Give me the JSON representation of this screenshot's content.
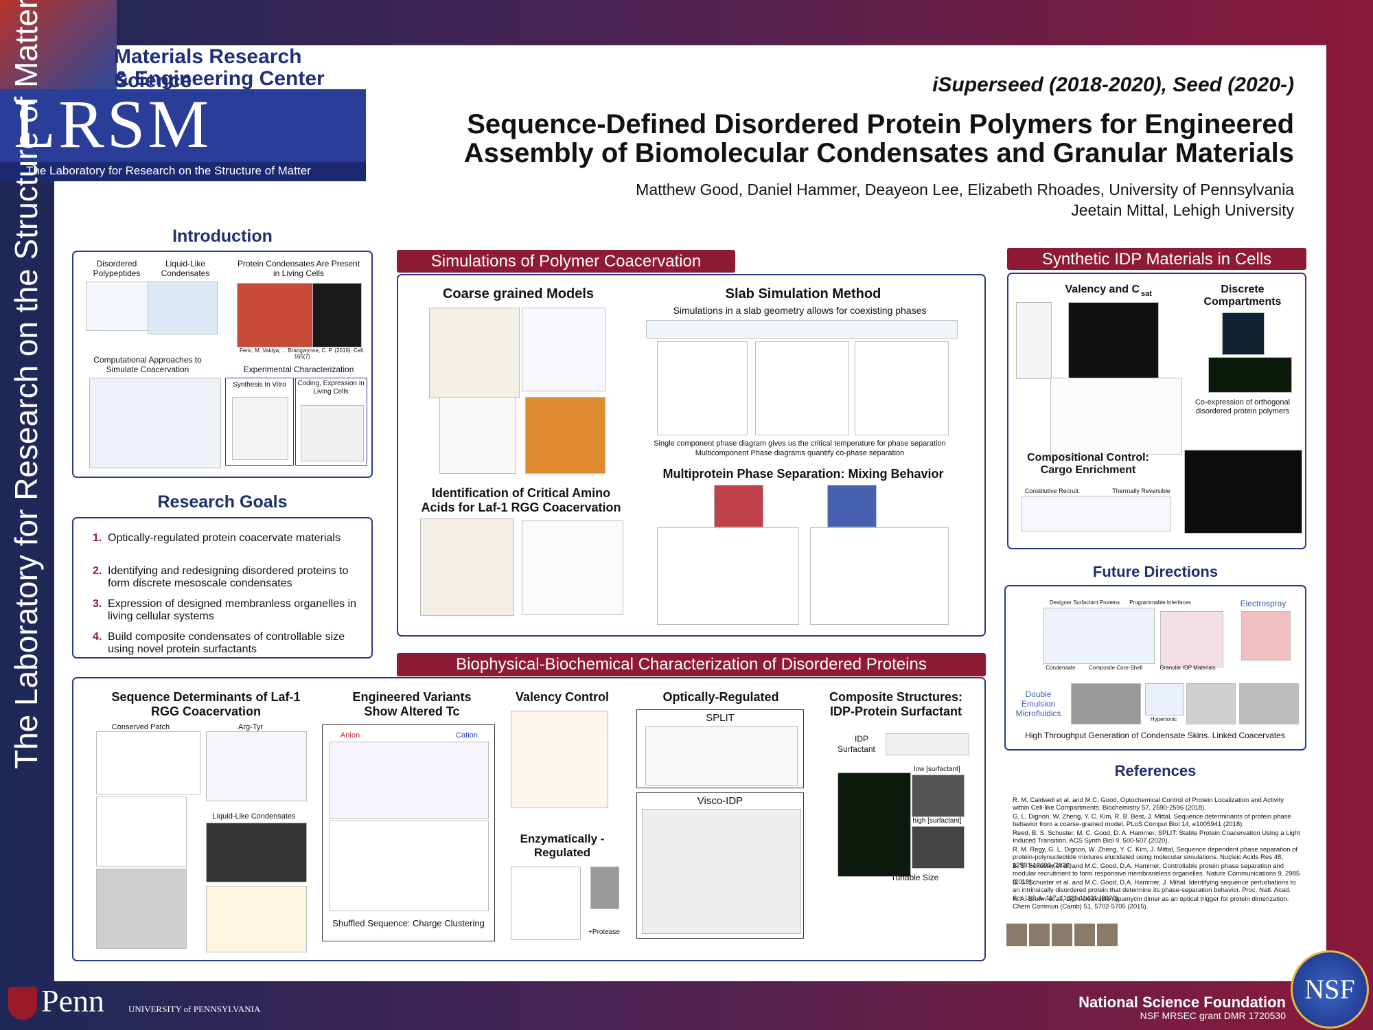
{
  "logo": {
    "center_line1": "Materials Research Science",
    "center_line2": "& Engineering Center",
    "acronym": "LRSM",
    "tagline": "The Laboratory for Research on the Structure of Matter"
  },
  "side_text": "The Laboratory for Research on the Structure of Matter",
  "header": {
    "program": "iSuperseed (2018-2020), Seed (2020-)",
    "title_line1": "Sequence-Defined Disordered Protein Polymers for Engineered",
    "title_line2": "Assembly of Biomolecular Condensates and Granular Materials",
    "authors_line1": "Matthew Good, Daniel Hammer, Deayeon Lee, Elizabeth Rhoades, University of Pennsylvania",
    "authors_line2": "Jeetain Mittal, Lehigh University"
  },
  "introduction": {
    "title": "Introduction",
    "disordered": "Disordered Polypeptides",
    "liquid": "Liquid-Like Condensates",
    "present": "Protein Condensates Are Present in Living Cells",
    "citation": "Feric, M.,Vaidya, ... Brangwynne, C. P. (2016). Cell. 165(7)",
    "computational": "Computational Approaches to Simulate Coacervation",
    "experimental": "Experimental Characterization",
    "synthesis": "Synthesis In Vitro",
    "coding": "Coding, Expression in Living Cells"
  },
  "research_goals": {
    "title": "Research Goals",
    "items": [
      {
        "number": "1.",
        "text": "Optically-regulated protein coacervate materials"
      },
      {
        "number": "2.",
        "text": "Identifying and redesigning disordered proteins to form discrete mesoscale condensates"
      },
      {
        "number": "3.",
        "text": "Expression of designed membranless organelles in living cellular systems"
      },
      {
        "number": "4.",
        "text": "Build composite condensates of controllable size using novel protein surfactants"
      }
    ]
  },
  "simulations": {
    "banner": "Simulations of Polymer Coacervation",
    "coarse": "Coarse grained Models",
    "slab": "Slab Simulation Method",
    "slab_caption": "Simulations in a slab geometry  allows for coexisting phases",
    "slab_note1": "Single component phase diagram gives us the critical temperature for phase separation",
    "slab_note2": "Multicomponent Phase diagrams quantify co-phase separation",
    "amino": "Identification of Critical Amino Acids for Laf-1 RGG Coacervation",
    "multi": "Multiprotein Phase Separation: Mixing Behavior"
  },
  "synthetic": {
    "banner": "Synthetic IDP Materials in Cells",
    "valency": "Valency and C",
    "valency_sub": "sat",
    "discrete": "Discrete Compartments",
    "coexpression": "Co-expression of orthogonal disordered protein polymers",
    "compositional": "Compositional Control: Cargo Enrichment",
    "constitutive": "Constitutive Recruit.",
    "thermal": "Thermally Reversible"
  },
  "future": {
    "title": "Future Directions",
    "designer": "Designer Surfactant Proteins",
    "programmable": "Programmable Interfaces",
    "electrospray": "Electrospray",
    "condensate": "Condensate",
    "core_shell": "Composite Core-Shell",
    "granular": "Granular IDP Materials",
    "double": "Double Emulsion Microfluidics",
    "hypertonic": "Hypertonic",
    "caption": "High Throughput Generation of Condensate Skins. Linked Coacervates"
  },
  "references": {
    "title": "References",
    "items": [
      "R. M. Caldwell et al. and M.C. Good, Optochemical Control of Protein Localization and Activity within Cell-like Compartments. Biochemistry 57, 2590-2596 (2018).",
      "G. L. Dignon, W. Zheng, Y. C. Kim, R. B. Best, J. Mittal, Sequence determinants of protein phase behavior from a coarse-grained model. PLoS Comput Biol 14, e1005941 (2018).",
      "Reed, B. S. Schuster, M. C. Good, D. A. Hammer, SPLIT: Stable Protein Coacervation Using a Light Induced Transition. ACS Synth Biol 9, 500-507 (2020).",
      "R. M. Regy, G. L. Dignon, W. Zheng, Y. C. Kim, J. Mittal, Sequence dependent phase separation of protein-polynucleotide mixtures elucidated using molecular simulations. Nucleic Acids Res 48, 12593-12603 (2020).",
      "B. S. Schuster et al. and M.C. Good, D.A. Hammer, Controllable protein phase separation and modular recruitment to form responsive membraneless organelles. Nature Communications 9, 2985 (2018).",
      "B. S. Schuster et al. and M.C. Good, D.A. Hammer, J. Mittal. Identifying sequence perturbations to an intrinsically disordered protein that determine its phase-separation behavior. Proc. Natl. Acad. Sci. U.S.A. 117, 11421-11431 (2020).",
      "K. A. Brown et al., Light-cleavable rapamycin dimer as an optical trigger for protein dimerization. Chem Commun (Camb) 51, 5702-5705 (2015)."
    ]
  },
  "biophysical": {
    "banner": "Biophysical-Biochemical Characterization of Disordered Proteins",
    "sequence": "Sequence Determinants of Laf-1 RGG Coacervation",
    "conserved": "Conserved Patch",
    "arg_tyr": "Arg-Tyr",
    "liquid": "Liquid-Like Condensates",
    "engineered": "Engineered Variants Show Altered Tc",
    "anion": "Anion",
    "cation": "Cation",
    "shuffled": "Shuffled Sequence: Charge Clustering",
    "valency": "Valency Control",
    "enzymatic": "Enzymatically -Regulated",
    "protease": "+Protease",
    "optical": "Optically-Regulated",
    "split": "SPLIT",
    "visco": "Visco-IDP",
    "composite": "Composite Structures: IDP-Protein Surfactant",
    "idp": "IDP",
    "surfactant": "Surfactant",
    "low": "low [surfactant]",
    "high": "high [surfactant]",
    "tunable": "Tunable Size"
  },
  "footer": {
    "penn": "Penn",
    "university": "UNIVERSITY of PENNSYLVANIA",
    "nsf_name": "National Science Foundation",
    "grant": "NSF MRSEC grant DMR 1720530",
    "nsf_logo": "NSF"
  }
}
